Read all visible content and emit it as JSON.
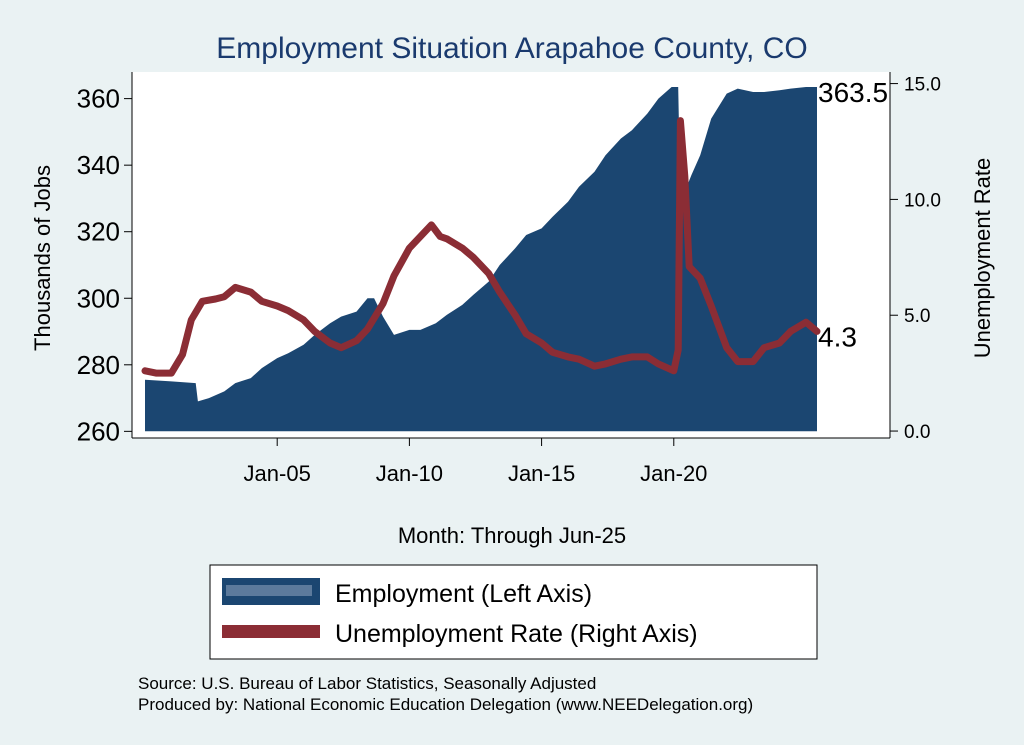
{
  "chart_data": {
    "type": "area",
    "title": "Employment Situation Arapahoe  County, CO",
    "xlabel": "Month: Through Jun-25",
    "ylabel_left": "Thousands of Jobs",
    "ylabel_right": "Unemployment Rate",
    "x_range": [
      "Jan-00",
      "Jun-25"
    ],
    "x_ticks": [
      "Jan-05",
      "Jan-10",
      "Jan-15",
      "Jan-20"
    ],
    "y_left_range": [
      258,
      368
    ],
    "y_left_ticks": [
      "260",
      "280",
      "300",
      "320",
      "340",
      "360"
    ],
    "y_right_range": [
      -0.3,
      15.5
    ],
    "y_right_ticks": [
      "0.0",
      "5.0",
      "10.0",
      "15.0"
    ],
    "grid": false,
    "series": [
      {
        "name": "Employment (Left Axis)",
        "type": "area",
        "axis": "left",
        "color": "#1b4671",
        "points": [
          [
            "2000-01",
            275.5
          ],
          [
            "2001-01",
            275.0
          ],
          [
            "2001-12",
            274.5
          ],
          [
            "2002-01",
            269.0
          ],
          [
            "2002-06",
            270.0
          ],
          [
            "2003-01",
            272.0
          ],
          [
            "2003-06",
            274.5
          ],
          [
            "2004-01",
            276.0
          ],
          [
            "2004-06",
            279.0
          ],
          [
            "2005-01",
            282.0
          ],
          [
            "2005-06",
            283.5
          ],
          [
            "2006-01",
            286.0
          ],
          [
            "2006-06",
            289.0
          ],
          [
            "2007-01",
            292.5
          ],
          [
            "2007-06",
            294.5
          ],
          [
            "2008-01",
            296.0
          ],
          [
            "2008-06",
            300.0
          ],
          [
            "2008-09",
            300.0
          ],
          [
            "2009-01",
            294.5
          ],
          [
            "2009-06",
            289.0
          ],
          [
            "2010-01",
            290.5
          ],
          [
            "2010-06",
            290.5
          ],
          [
            "2011-01",
            292.5
          ],
          [
            "2011-06",
            295.0
          ],
          [
            "2012-01",
            298.0
          ],
          [
            "2012-06",
            301.0
          ],
          [
            "2013-01",
            305.0
          ],
          [
            "2013-06",
            310.0
          ],
          [
            "2014-01",
            315.0
          ],
          [
            "2014-06",
            319.0
          ],
          [
            "2015-01",
            321.0
          ],
          [
            "2015-06",
            324.5
          ],
          [
            "2016-01",
            329.0
          ],
          [
            "2016-06",
            333.5
          ],
          [
            "2017-01",
            338.0
          ],
          [
            "2017-06",
            343.0
          ],
          [
            "2018-01",
            348.0
          ],
          [
            "2018-06",
            350.5
          ],
          [
            "2019-01",
            355.5
          ],
          [
            "2019-06",
            360.0
          ],
          [
            "2019-12",
            363.5
          ],
          [
            "2020-03",
            363.5
          ],
          [
            "2020-04",
            330.0
          ],
          [
            "2020-06",
            332.0
          ],
          [
            "2020-09",
            337.0
          ],
          [
            "2021-01",
            343.0
          ],
          [
            "2021-06",
            354.0
          ],
          [
            "2022-01",
            361.5
          ],
          [
            "2022-06",
            363.0
          ],
          [
            "2023-01",
            362.0
          ],
          [
            "2023-06",
            362.0
          ],
          [
            "2024-01",
            362.5
          ],
          [
            "2024-06",
            363.0
          ],
          [
            "2025-01",
            363.5
          ],
          [
            "2025-06",
            363.5
          ]
        ]
      },
      {
        "name": "Unemployment Rate (Right Axis)",
        "type": "line",
        "axis": "right",
        "color": "#8b2d35",
        "points": [
          [
            "2000-01",
            2.6
          ],
          [
            "2000-06",
            2.5
          ],
          [
            "2001-01",
            2.5
          ],
          [
            "2001-06",
            3.3
          ],
          [
            "2001-10",
            4.8
          ],
          [
            "2002-03",
            5.6
          ],
          [
            "2002-09",
            5.7
          ],
          [
            "2003-01",
            5.8
          ],
          [
            "2003-06",
            6.2
          ],
          [
            "2004-01",
            6.0
          ],
          [
            "2004-06",
            5.6
          ],
          [
            "2005-01",
            5.4
          ],
          [
            "2005-06",
            5.2
          ],
          [
            "2006-01",
            4.8
          ],
          [
            "2006-06",
            4.3
          ],
          [
            "2007-01",
            3.8
          ],
          [
            "2007-06",
            3.6
          ],
          [
            "2008-01",
            3.9
          ],
          [
            "2008-06",
            4.4
          ],
          [
            "2009-01",
            5.5
          ],
          [
            "2009-06",
            6.7
          ],
          [
            "2010-01",
            7.9
          ],
          [
            "2010-06",
            8.4
          ],
          [
            "2010-11",
            8.9
          ],
          [
            "2011-03",
            8.4
          ],
          [
            "2011-06",
            8.3
          ],
          [
            "2012-01",
            7.9
          ],
          [
            "2012-06",
            7.5
          ],
          [
            "2013-01",
            6.8
          ],
          [
            "2013-06",
            6.0
          ],
          [
            "2014-01",
            5.0
          ],
          [
            "2014-06",
            4.2
          ],
          [
            "2015-01",
            3.8
          ],
          [
            "2015-06",
            3.4
          ],
          [
            "2016-01",
            3.2
          ],
          [
            "2016-06",
            3.1
          ],
          [
            "2017-01",
            2.8
          ],
          [
            "2017-06",
            2.9
          ],
          [
            "2018-01",
            3.1
          ],
          [
            "2018-06",
            3.2
          ],
          [
            "2019-01",
            3.2
          ],
          [
            "2019-06",
            2.9
          ],
          [
            "2020-01",
            2.6
          ],
          [
            "2020-03",
            3.5
          ],
          [
            "2020-04",
            13.4
          ],
          [
            "2020-06",
            11.0
          ],
          [
            "2020-08",
            7.1
          ],
          [
            "2021-01",
            6.6
          ],
          [
            "2021-06",
            5.4
          ],
          [
            "2022-01",
            3.6
          ],
          [
            "2022-06",
            3.0
          ],
          [
            "2023-01",
            3.0
          ],
          [
            "2023-06",
            3.6
          ],
          [
            "2024-01",
            3.8
          ],
          [
            "2024-06",
            4.3
          ],
          [
            "2025-01",
            4.7
          ],
          [
            "2025-06",
            4.3
          ]
        ]
      }
    ],
    "end_labels": {
      "employment": "363.5",
      "unemployment": "4.3"
    },
    "legend": {
      "position": "bottom",
      "items": [
        "Employment (Left Axis)",
        "Unemployment Rate (Right Axis)"
      ]
    }
  },
  "footer": {
    "source": "Source: U.S. Bureau of Labor Statistics, Seasonally Adjusted",
    "produced_by": "Produced by: National Economic Education Delegation (www.NEEDelegation.org)"
  }
}
